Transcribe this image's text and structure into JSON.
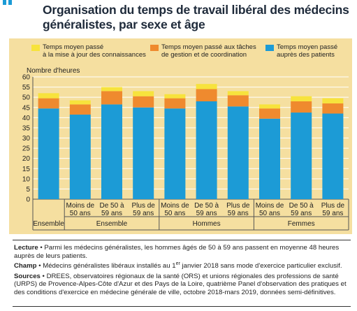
{
  "title": "Organisation du temps de travail libéral des médecins généralistes, par sexe et âge",
  "colors": {
    "series_gestion_mise_a_jour": "#f7e33c",
    "series_gestion": "#ef8a2e",
    "series_patients": "#1c9bd6",
    "panel": "#f5dfa0",
    "title": "#1e2a3a",
    "corner": "#1c9bd6"
  },
  "legend": {
    "item1": "Temps moyen passé\nà la mise à jour des connaissances",
    "item2": "Temps moyen passé aux tâches\nde gestion et de coordination",
    "item3": "Temps moyen passé\nauprès des patients"
  },
  "chart_data": {
    "type": "bar",
    "stacked": true,
    "ylabel": "Nombre d'heures",
    "ylim": [
      0,
      60
    ],
    "yticks": [
      0,
      5,
      10,
      15,
      20,
      25,
      30,
      35,
      40,
      45,
      50,
      55,
      60
    ],
    "grid": true,
    "legend_position": "top",
    "categories": [
      "Ensemble",
      "Moins de 50 ans",
      "De 50 à 59 ans",
      "Plus de 59 ans",
      "Moins de 50 ans",
      "De 50 à 59 ans",
      "Plus de 59 ans",
      "Moins de 50 ans",
      "De 50 à 59 ans",
      "Plus de 59 ans"
    ],
    "category_lines": [
      [],
      [
        "Moins de",
        "50 ans"
      ],
      [
        "De 50 à",
        "59 ans"
      ],
      [
        "Plus de",
        "59 ans"
      ],
      [
        "Moins de",
        "50 ans"
      ],
      [
        "De 50 à",
        "59 ans"
      ],
      [
        "Plus de",
        "59 ans"
      ],
      [
        "Moins de",
        "50 ans"
      ],
      [
        "De 50 à",
        "59 ans"
      ],
      [
        "Plus de",
        "59 ans"
      ]
    ],
    "groups": [
      {
        "label": "Ensemble",
        "start": 0,
        "end": 0
      },
      {
        "label": "Ensemble",
        "start": 1,
        "end": 3
      },
      {
        "label": "Hommes",
        "start": 4,
        "end": 6
      },
      {
        "label": "Femmes",
        "start": 7,
        "end": 9
      }
    ],
    "series": [
      {
        "name": "Temps moyen passé auprès des patients",
        "values": [
          44.5,
          41.5,
          46.5,
          45.0,
          44.5,
          48.0,
          45.5,
          39.5,
          42.5,
          42.0
        ]
      },
      {
        "name": "Temps moyen passé aux tâches de gestion et de coordination",
        "values": [
          5.0,
          5.0,
          6.5,
          5.5,
          5.0,
          6.0,
          5.5,
          5.0,
          5.5,
          5.0
        ]
      },
      {
        "name": "Temps moyen passé à la mise à jour des connaissances",
        "values": [
          2.5,
          2.0,
          2.0,
          2.5,
          2.0,
          2.5,
          2.0,
          2.0,
          2.5,
          2.5
        ]
      }
    ]
  },
  "notes": {
    "lecture_label": "Lecture",
    "lecture_text": "Parmi les médecins généralistes, les hommes âgés de 50 à 59 ans passent en moyenne 48 heures auprès de leurs patients.",
    "champ_label": "Champ",
    "champ_text_1": "Médecins généralistes libéraux installés au 1",
    "champ_sup": "er",
    "champ_text_2": " janvier 2018 sans mode d'exercice particulier exclusif.",
    "sources_label": "Sources",
    "sources_text": "DREES, observatoires régionaux de la santé (ORS) et unions régionales des professions de santé (URPS) de Provence-Alpes-Côte d'Azur et des Pays de la Loire, quatrième Panel d'observation des pratiques et des conditions d'exercice en médecine générale de ville, octobre 2018-mars 2019, données semi-définitives.",
    "bullet": "•"
  }
}
